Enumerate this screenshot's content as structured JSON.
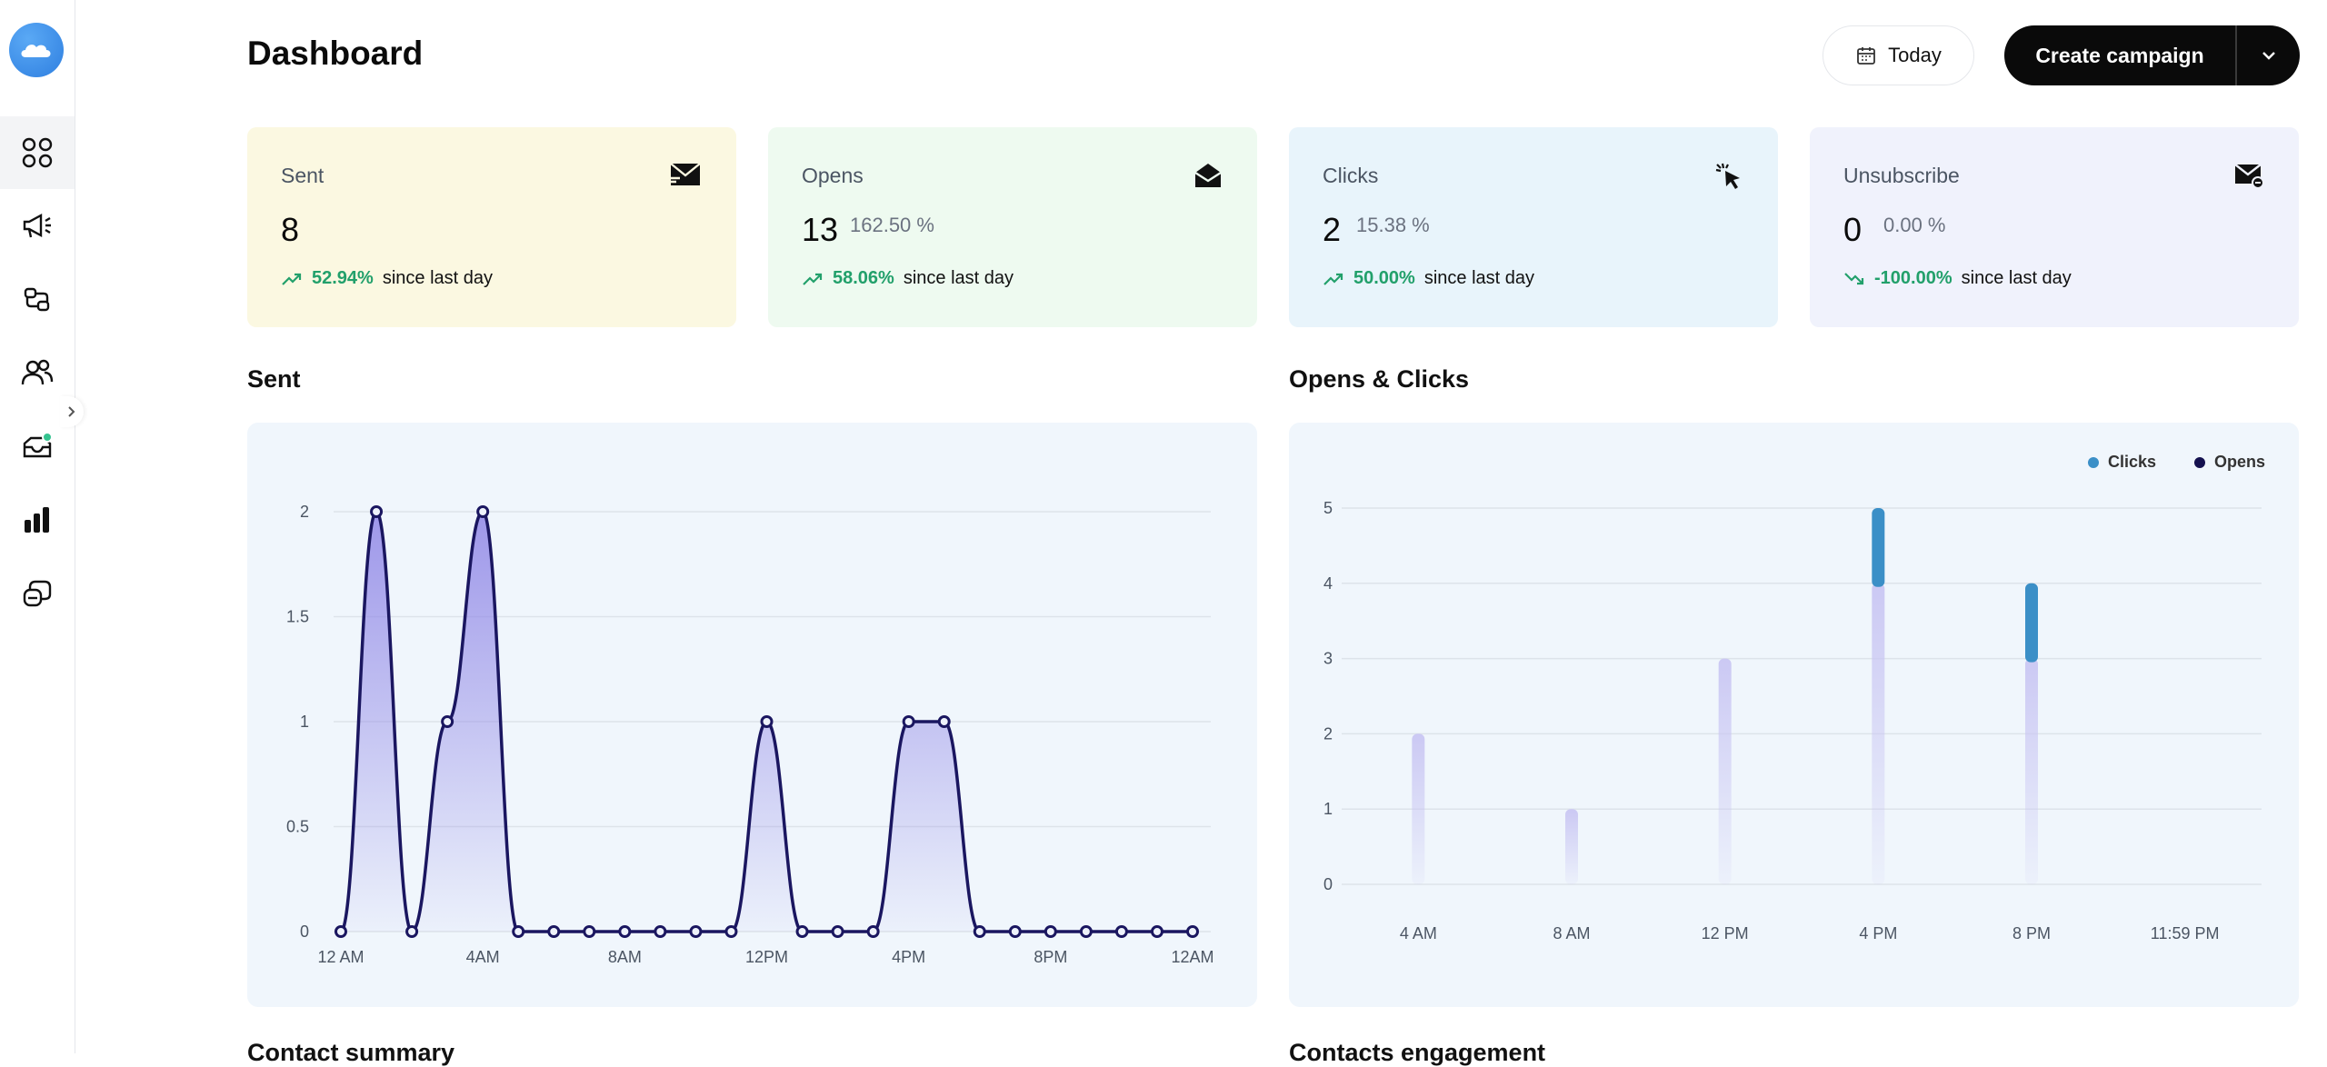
{
  "header": {
    "title": "Dashboard",
    "date_filter": "Today",
    "create_label": "Create campaign"
  },
  "nav": {
    "items": [
      "dashboard-icon",
      "megaphone-icon",
      "automation-icon",
      "contacts-icon",
      "inbox-icon",
      "reports-icon",
      "templates-icon"
    ]
  },
  "cards": [
    {
      "label": "Sent",
      "value": "8",
      "pct": "",
      "change": "52.94%",
      "change_text": "since last day",
      "trend": "up",
      "bg": "#fbf8e1"
    },
    {
      "label": "Opens",
      "value": "13",
      "pct": "162.50 %",
      "change": "58.06%",
      "change_text": "since last day",
      "trend": "up",
      "bg": "#eefaf0"
    },
    {
      "label": "Clicks",
      "value": "2",
      "pct": "15.38 %",
      "change": "50.00%",
      "change_text": "since last day",
      "trend": "up",
      "bg": "#e8f4fb"
    },
    {
      "label": "Unsubscribe",
      "value": "0",
      "pct": "0.00 %",
      "change": "-100.00%",
      "change_text": "since last day",
      "trend": "down",
      "bg": "#f0f2fc"
    }
  ],
  "sections": {
    "sent_title": "Sent",
    "opens_clicks_title": "Opens & Clicks",
    "contact_summary_title": "Contact summary",
    "contacts_engagement_title": "Contacts engagement"
  },
  "chart_data": [
    {
      "type": "area",
      "title": "Sent",
      "x_tick_labels": [
        "12 AM",
        "4AM",
        "8AM",
        "12PM",
        "4PM",
        "8PM",
        "12AM"
      ],
      "y_ticks": [
        "0",
        "0.5",
        "1",
        "1.5",
        "2"
      ],
      "ylim": [
        0,
        2
      ],
      "series": [
        {
          "values": [
            0,
            2,
            0,
            1,
            2,
            0,
            0,
            0,
            0,
            0,
            0,
            0,
            1,
            0,
            0,
            0,
            1,
            1,
            0,
            0,
            0,
            0,
            0,
            0,
            0
          ]
        }
      ],
      "grid": true,
      "colors": {
        "line": "#1a1660",
        "fill": "#8f86e6"
      }
    },
    {
      "type": "bar",
      "title": "Opens & Clicks",
      "x_tick_labels": [
        "4 AM",
        "8 AM",
        "12 PM",
        "4 PM",
        "8 PM",
        "11:59 PM"
      ],
      "y_ticks": [
        "0",
        "1",
        "2",
        "3",
        "4",
        "5"
      ],
      "ylim": [
        0,
        5
      ],
      "stacked": true,
      "legend_position": "top-right",
      "legend": [
        "Clicks",
        "Opens"
      ],
      "series": [
        {
          "name": "Opens",
          "values": [
            2,
            1,
            3,
            4,
            3,
            0
          ],
          "color": "#c9c6f3"
        },
        {
          "name": "Clicks",
          "values": [
            0,
            0,
            0,
            1,
            1,
            0
          ],
          "color": "#3b8fc7"
        }
      ],
      "colors": {
        "legend_clicks": "#3b8fc7",
        "legend_opens": "#15114f"
      }
    }
  ]
}
